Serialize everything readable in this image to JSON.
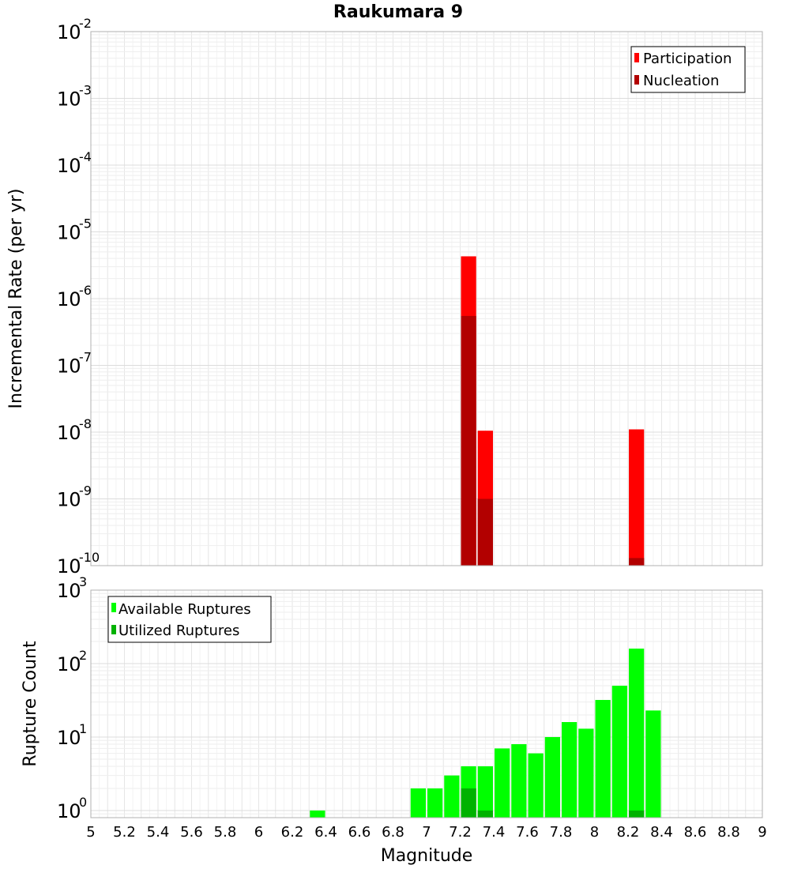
{
  "chart_data": [
    {
      "type": "bar",
      "title": "Raukumara 9",
      "ylabel": "Incremental Rate (per yr)",
      "xlabel": "",
      "yscale": "log",
      "xlim": [
        5,
        9
      ],
      "ylim": [
        1e-10,
        0.01
      ],
      "bar_width": 0.1,
      "y_ticks": [
        {
          "base": "10",
          "exp": "-2",
          "value": 0.01
        },
        {
          "base": "10",
          "exp": "-3",
          "value": 0.001
        },
        {
          "base": "10",
          "exp": "-4",
          "value": 0.0001
        },
        {
          "base": "10",
          "exp": "-5",
          "value": 1e-05
        },
        {
          "base": "10",
          "exp": "-6",
          "value": 1e-06
        },
        {
          "base": "10",
          "exp": "-7",
          "value": 1e-07
        },
        {
          "base": "10",
          "exp": "-8",
          "value": 1e-08
        },
        {
          "base": "10",
          "exp": "-9",
          "value": 1e-09
        },
        {
          "base": "10",
          "exp": "-10",
          "value": 1e-10
        }
      ],
      "series": [
        {
          "name": "Participation",
          "color": "#ff0000",
          "points": [
            {
              "x": 7.25,
              "y": 4.3e-06
            },
            {
              "x": 7.35,
              "y": 1.05e-08
            },
            {
              "x": 8.25,
              "y": 1.1e-08
            }
          ]
        },
        {
          "name": "Nucleation",
          "color": "#b20000",
          "points": [
            {
              "x": 7.25,
              "y": 5.5e-07
            },
            {
              "x": 7.35,
              "y": 1e-09
            },
            {
              "x": 8.25,
              "y": 1.3e-10
            }
          ]
        }
      ],
      "legend": {
        "position": "top-right"
      },
      "grid": true
    },
    {
      "type": "bar",
      "title": "",
      "ylabel": "Rupture Count",
      "xlabel": "Magnitude",
      "yscale": "log",
      "xlim": [
        5,
        9
      ],
      "ylim": [
        0.8,
        1000
      ],
      "bar_width": 0.1,
      "x_ticks": [
        "5",
        "5.2",
        "5.4",
        "5.6",
        "5.8",
        "6",
        "6.2",
        "6.4",
        "6.6",
        "6.8",
        "7",
        "7.2",
        "7.4",
        "7.6",
        "7.8",
        "8",
        "8.2",
        "8.4",
        "8.6",
        "8.8",
        "9"
      ],
      "y_ticks": [
        {
          "base": "10",
          "exp": "3",
          "value": 1000
        },
        {
          "base": "10",
          "exp": "2",
          "value": 100
        },
        {
          "base": "10",
          "exp": "1",
          "value": 10
        },
        {
          "base": "10",
          "exp": "0",
          "value": 1
        }
      ],
      "series": [
        {
          "name": "Available Ruptures",
          "color": "#00ff00",
          "points": [
            {
              "x": 6.35,
              "y": 1
            },
            {
              "x": 6.95,
              "y": 2
            },
            {
              "x": 7.05,
              "y": 2
            },
            {
              "x": 7.15,
              "y": 3
            },
            {
              "x": 7.25,
              "y": 4
            },
            {
              "x": 7.35,
              "y": 4
            },
            {
              "x": 7.45,
              "y": 7
            },
            {
              "x": 7.55,
              "y": 8
            },
            {
              "x": 7.65,
              "y": 6
            },
            {
              "x": 7.75,
              "y": 10
            },
            {
              "x": 7.85,
              "y": 16
            },
            {
              "x": 7.95,
              "y": 13
            },
            {
              "x": 8.05,
              "y": 32
            },
            {
              "x": 8.15,
              "y": 50
            },
            {
              "x": 8.25,
              "y": 160
            },
            {
              "x": 8.35,
              "y": 23
            }
          ]
        },
        {
          "name": "Utilized Ruptures",
          "color": "#00b200",
          "points": [
            {
              "x": 7.25,
              "y": 2
            },
            {
              "x": 7.35,
              "y": 1
            },
            {
              "x": 8.25,
              "y": 1
            }
          ]
        }
      ],
      "legend": {
        "position": "top-left"
      },
      "grid": true
    }
  ]
}
